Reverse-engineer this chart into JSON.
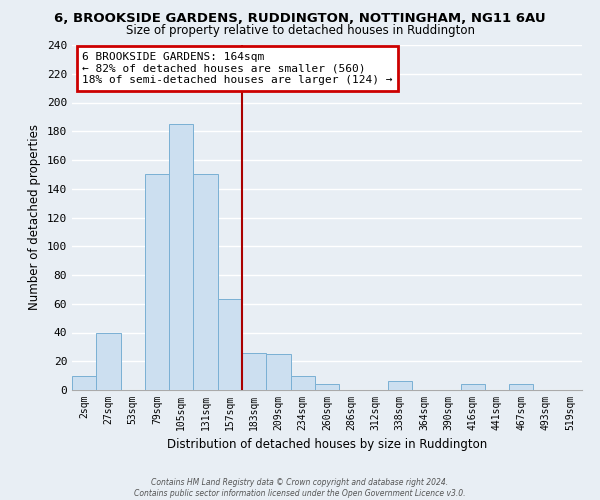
{
  "title": "6, BROOKSIDE GARDENS, RUDDINGTON, NOTTINGHAM, NG11 6AU",
  "subtitle": "Size of property relative to detached houses in Ruddington",
  "xlabel": "Distribution of detached houses by size in Ruddington",
  "ylabel": "Number of detached properties",
  "bin_labels": [
    "2sqm",
    "27sqm",
    "53sqm",
    "79sqm",
    "105sqm",
    "131sqm",
    "157sqm",
    "183sqm",
    "209sqm",
    "234sqm",
    "260sqm",
    "286sqm",
    "312sqm",
    "338sqm",
    "364sqm",
    "390sqm",
    "416sqm",
    "441sqm",
    "467sqm",
    "493sqm",
    "519sqm"
  ],
  "bar_heights": [
    10,
    40,
    0,
    150,
    185,
    150,
    63,
    26,
    25,
    10,
    4,
    0,
    0,
    6,
    0,
    0,
    4,
    0,
    4,
    0,
    0
  ],
  "bar_color": "#ccdff0",
  "bar_edge_color": "#7ab0d4",
  "vline_index": 6,
  "vline_color": "#aa0000",
  "annotation_text": "6 BROOKSIDE GARDENS: 164sqm\n← 82% of detached houses are smaller (560)\n18% of semi-detached houses are larger (124) →",
  "annotation_box_facecolor": "#ffffff",
  "annotation_box_edgecolor": "#cc0000",
  "ylim": [
    0,
    240
  ],
  "yticks": [
    0,
    20,
    40,
    60,
    80,
    100,
    120,
    140,
    160,
    180,
    200,
    220,
    240
  ],
  "background_color": "#e8eef4",
  "grid_color": "#ffffff",
  "footer_line1": "Contains HM Land Registry data © Crown copyright and database right 2024.",
  "footer_line2": "Contains public sector information licensed under the Open Government Licence v3.0."
}
